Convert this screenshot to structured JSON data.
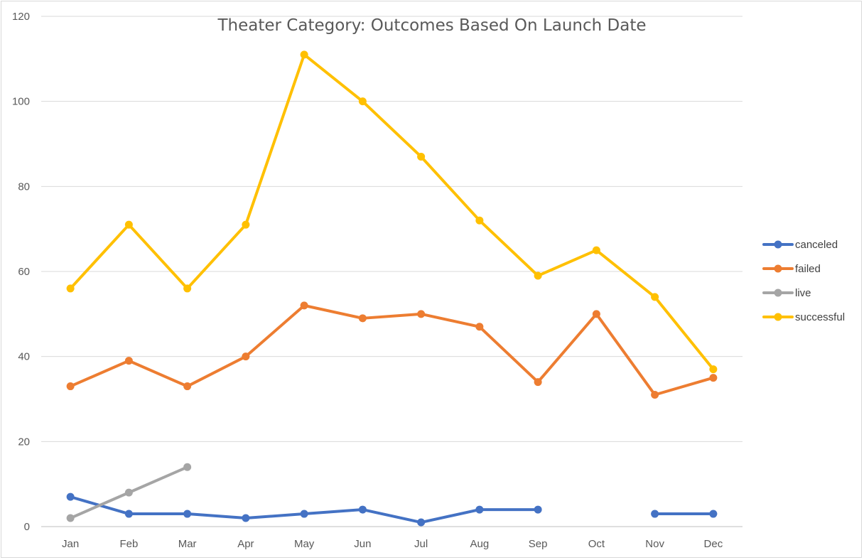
{
  "chart_data": {
    "type": "line",
    "title": "Theater Category: Outcomes Based On Launch Date",
    "xlabel": "",
    "ylabel": "",
    "categories": [
      "Jan",
      "Feb",
      "Mar",
      "Apr",
      "May",
      "Jun",
      "Jul",
      "Aug",
      "Sep",
      "Oct",
      "Nov",
      "Dec"
    ],
    "ylim": [
      0,
      120
    ],
    "yticks": [
      "0",
      "20",
      "40",
      "60",
      "80",
      "100",
      "120"
    ],
    "grid": true,
    "legend": "right",
    "series": [
      {
        "name": "canceled",
        "color": "#4472c4",
        "values": [
          7,
          3,
          3,
          2,
          3,
          4,
          1,
          4,
          4,
          null,
          3,
          3
        ]
      },
      {
        "name": "failed",
        "color": "#ed7d31",
        "values": [
          33,
          39,
          33,
          40,
          52,
          49,
          50,
          47,
          34,
          50,
          31,
          35
        ]
      },
      {
        "name": "live",
        "color": "#a5a5a5",
        "values": [
          2,
          8,
          14,
          null,
          null,
          null,
          null,
          null,
          null,
          null,
          null,
          null
        ]
      },
      {
        "name": "successful",
        "color": "#ffc000",
        "values": [
          56,
          71,
          56,
          71,
          111,
          100,
          87,
          72,
          59,
          65,
          54,
          37
        ]
      }
    ]
  }
}
